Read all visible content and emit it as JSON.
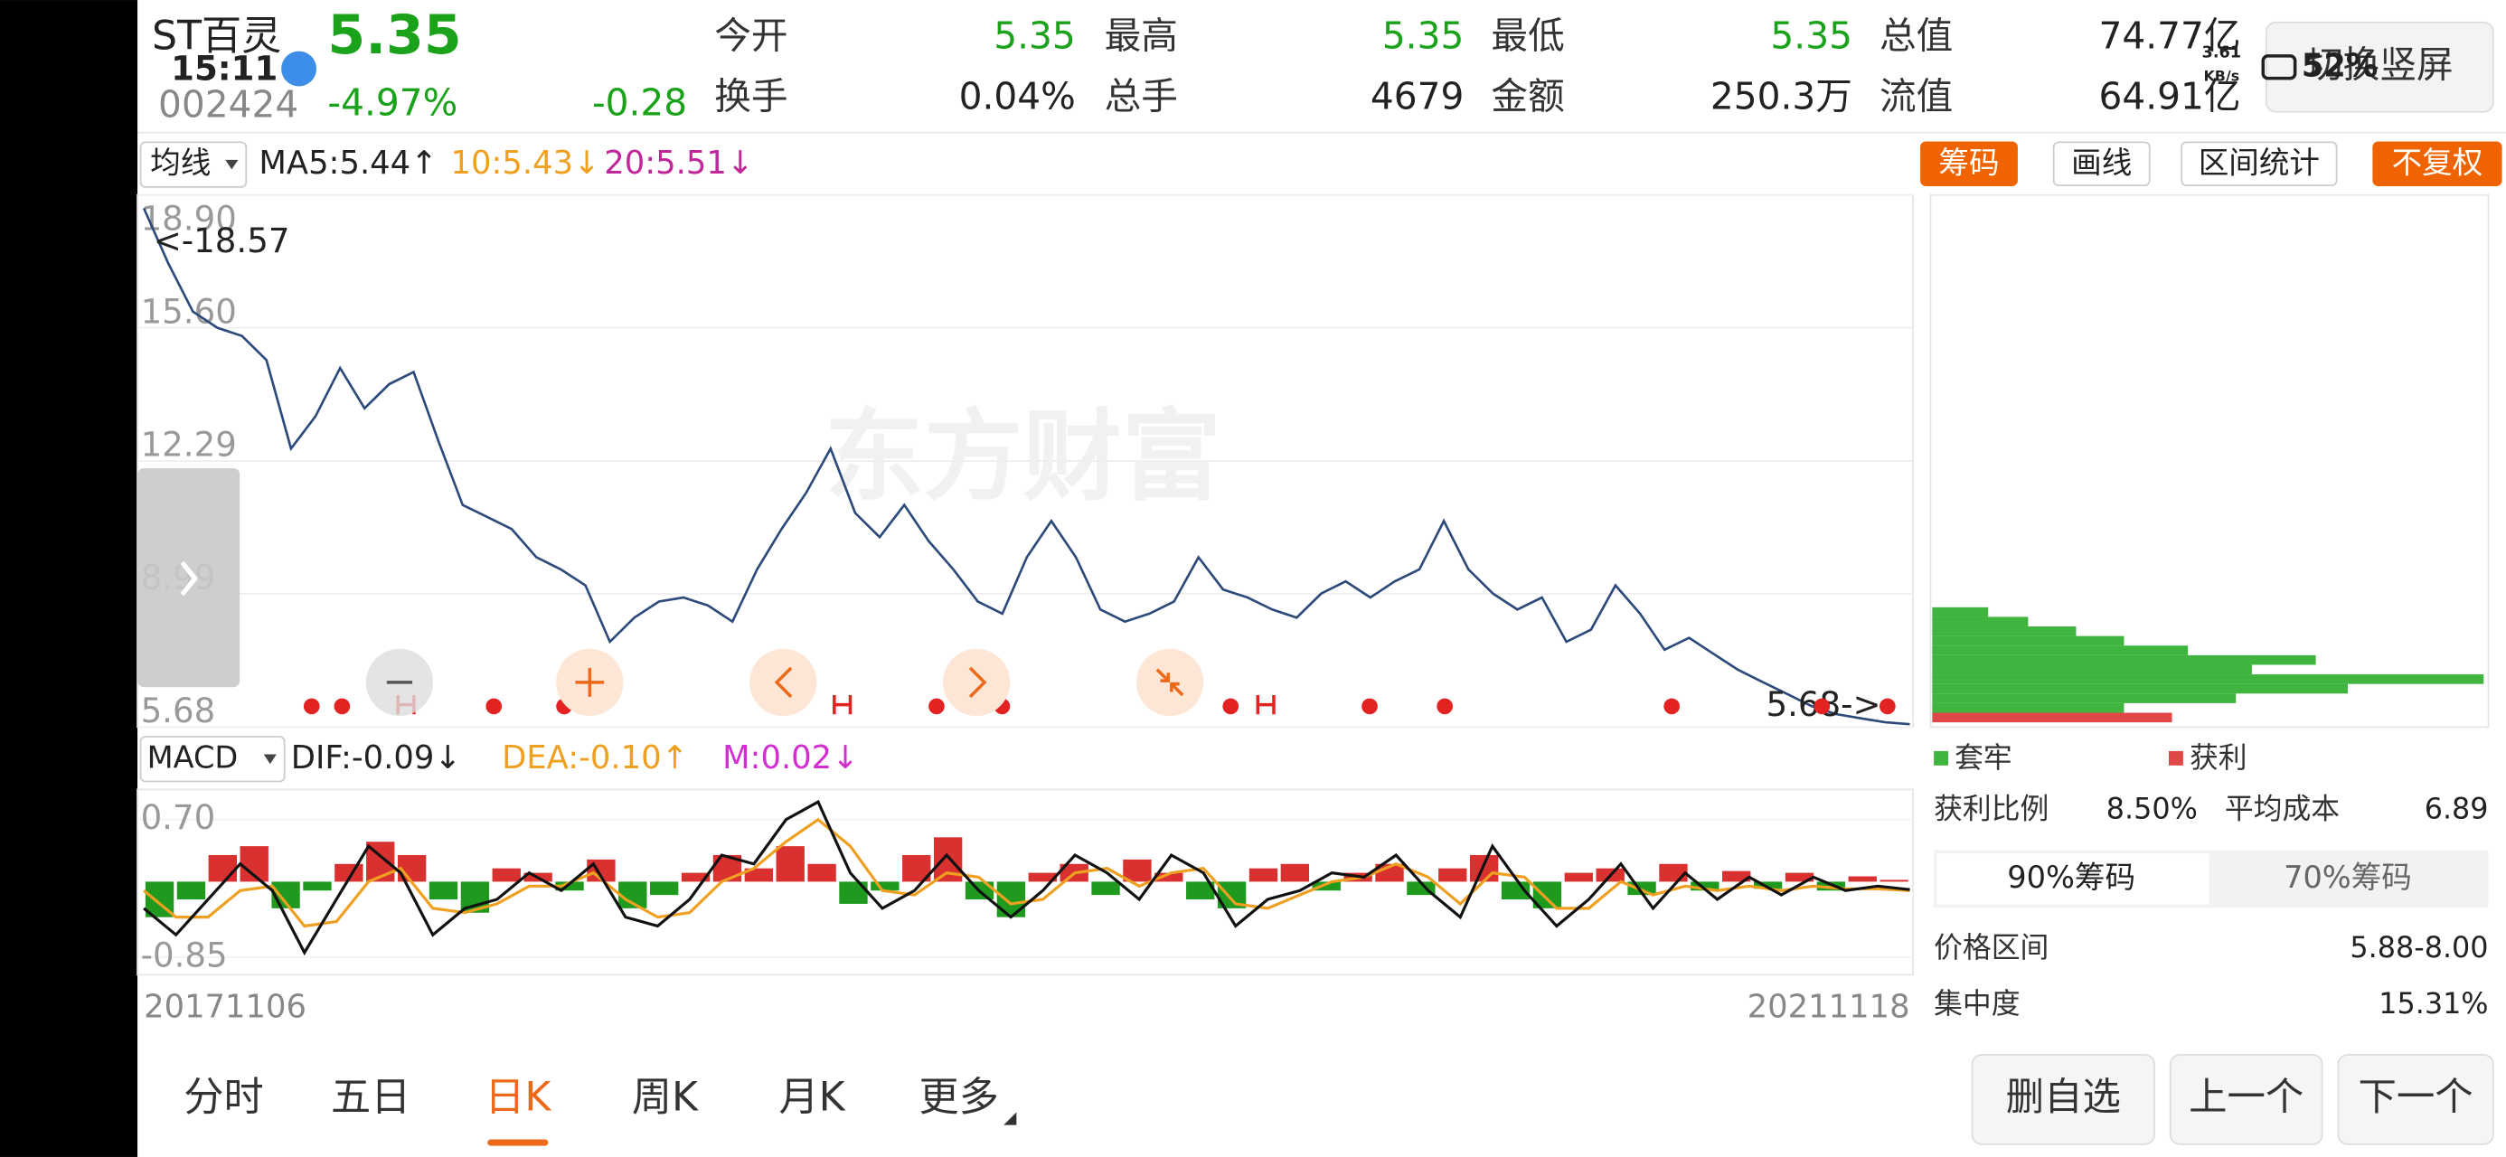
{
  "header": {
    "name": "ST百灵",
    "price": "5.35",
    "time": "15:11",
    "code": "002424",
    "change_pct": "-4.97%",
    "change": "-0.28",
    "quotes": [
      {
        "label": "今开",
        "value": "5.35"
      },
      {
        "label": "最高",
        "value": "5.35"
      },
      {
        "label": "最低",
        "value": "5.35"
      },
      {
        "label": "总值",
        "value": "74.77亿"
      },
      {
        "label": "换手",
        "value": "0.04%"
      },
      {
        "label": "总手",
        "value": "4679"
      },
      {
        "label": "金额",
        "value": "250.3万"
      },
      {
        "label": "流值",
        "value": "64.91亿"
      }
    ],
    "switch_button": "切换竖屏"
  },
  "status": {
    "speed": "3.61",
    "speed_unit": "KB/s",
    "battery": "52%"
  },
  "toolbar": {
    "ma_select": "均线",
    "ma5": "MA5:5.44↑",
    "ma10": "10:5.43↓",
    "ma20": "20:5.51↓",
    "buttons": [
      "筹码",
      "画线",
      "区间统计",
      "不复权"
    ]
  },
  "chart_data": [
    {
      "type": "line",
      "watermark": "东方财富",
      "color": "#2c4a7a",
      "annotations": [
        "<-18.57",
        "5.68->"
      ],
      "values": [
        18.57,
        17.2,
        16.0,
        15.6,
        15.4,
        14.8,
        12.6,
        13.4,
        14.6,
        13.6,
        14.2,
        14.5,
        12.8,
        11.2,
        10.9,
        10.6,
        9.9,
        9.6,
        9.2,
        7.8,
        8.4,
        8.8,
        8.9,
        8.7,
        8.3,
        9.6,
        10.6,
        11.5,
        12.6,
        11.0,
        10.4,
        11.2,
        10.3,
        9.6,
        8.8,
        8.5,
        9.9,
        10.8,
        9.9,
        8.6,
        8.3,
        8.5,
        8.8,
        9.9,
        9.1,
        8.9,
        8.6,
        8.4,
        9.0,
        9.3,
        8.9,
        9.3,
        9.6,
        10.8,
        9.6,
        9.0,
        8.6,
        8.9,
        7.8,
        8.1,
        9.2,
        8.5,
        7.6,
        7.9,
        7.5,
        7.1,
        6.8,
        6.5,
        6.2,
        6.0,
        5.9,
        5.8,
        5.75
      ],
      "ylim": [
        5.68,
        18.9
      ],
      "yticks": [
        {
          "value": 18.9,
          "label": "18.90"
        },
        {
          "value": 15.6,
          "label": "15.60"
        },
        12.29,
        8.99,
        5.68
      ]
    },
    {
      "type": "macd",
      "select": "MACD",
      "dif_label": "DIF:-0.09↓",
      "dea_label": "DEA:-0.10↑",
      "m_label": "M:0.02↓",
      "dates": [
        "20171106",
        "20211118"
      ],
      "colors": {
        "up": "#d93030",
        "down": "#1f9a1f",
        "dif": "#111111",
        "dea": "#f0a020"
      },
      "histogram": [
        -0.4,
        -0.2,
        0.3,
        0.4,
        -0.3,
        -0.1,
        0.2,
        0.45,
        0.3,
        -0.2,
        -0.35,
        0.15,
        0.1,
        -0.1,
        0.25,
        -0.3,
        -0.15,
        0.1,
        0.3,
        0.15,
        0.4,
        0.2,
        -0.25,
        -0.1,
        0.3,
        0.5,
        -0.2,
        -0.4,
        0.1,
        0.2,
        -0.15,
        0.25,
        0.1,
        -0.2,
        -0.3,
        0.15,
        0.2,
        -0.1,
        0.1,
        0.2,
        -0.15,
        0.15,
        0.3,
        -0.2,
        -0.3,
        0.1,
        0.15,
        -0.15,
        0.2,
        -0.1,
        0.12,
        -0.08,
        0.1,
        -0.1,
        0.06,
        0.02
      ],
      "dif": [
        -0.3,
        -0.6,
        -0.2,
        0.2,
        -0.1,
        -0.8,
        -0.2,
        0.4,
        0.1,
        -0.6,
        -0.3,
        -0.2,
        0.1,
        -0.1,
        0.2,
        -0.4,
        -0.5,
        -0.2,
        0.3,
        0.2,
        0.7,
        0.9,
        0.1,
        -0.3,
        -0.1,
        0.3,
        -0.1,
        -0.4,
        -0.1,
        0.3,
        0.1,
        -0.2,
        0.3,
        0.1,
        -0.5,
        -0.2,
        -0.1,
        0.1,
        0.05,
        0.3,
        -0.1,
        -0.4,
        0.4,
        -0.1,
        -0.5,
        -0.2,
        0.2,
        -0.3,
        0.1,
        -0.2,
        0.05,
        -0.15,
        0.05,
        -0.1,
        -0.05,
        -0.09
      ],
      "dea": [
        -0.1,
        -0.4,
        -0.4,
        -0.1,
        -0.05,
        -0.5,
        -0.45,
        0.0,
        0.15,
        -0.3,
        -0.35,
        -0.25,
        -0.05,
        -0.05,
        0.1,
        -0.2,
        -0.4,
        -0.35,
        0.0,
        0.15,
        0.45,
        0.7,
        0.4,
        -0.1,
        -0.15,
        0.1,
        0.05,
        -0.25,
        -0.2,
        0.1,
        0.15,
        -0.05,
        0.1,
        0.15,
        -0.25,
        -0.3,
        -0.15,
        0.0,
        0.05,
        0.2,
        0.05,
        -0.25,
        0.1,
        0.05,
        -0.3,
        -0.3,
        0.0,
        -0.15,
        -0.05,
        -0.1,
        -0.05,
        -0.1,
        -0.05,
        -0.08,
        -0.08,
        -0.1
      ],
      "ylim": [
        -1.05,
        1.04
      ],
      "yticks": [
        {
          "value": 0.7,
          "label": "0.70"
        },
        -0.85
      ]
    }
  ],
  "chips": {
    "legend": [
      "套牢",
      "获利"
    ],
    "profit_ratio_label": "获利比例",
    "profit_ratio": "8.50%",
    "avg_cost_label": "平均成本",
    "avg_cost": "6.89",
    "tabs": [
      "90%筹码",
      "70%筹码"
    ],
    "range_label": "价格区间",
    "range": "5.88-8.00",
    "concentration_label": "集中度",
    "concentration": "15.31%"
  },
  "tabs": [
    "分时",
    "五日",
    "日K",
    "周K",
    "月K",
    "更多"
  ],
  "actions": [
    "删自选",
    "上一个",
    "下一个"
  ]
}
